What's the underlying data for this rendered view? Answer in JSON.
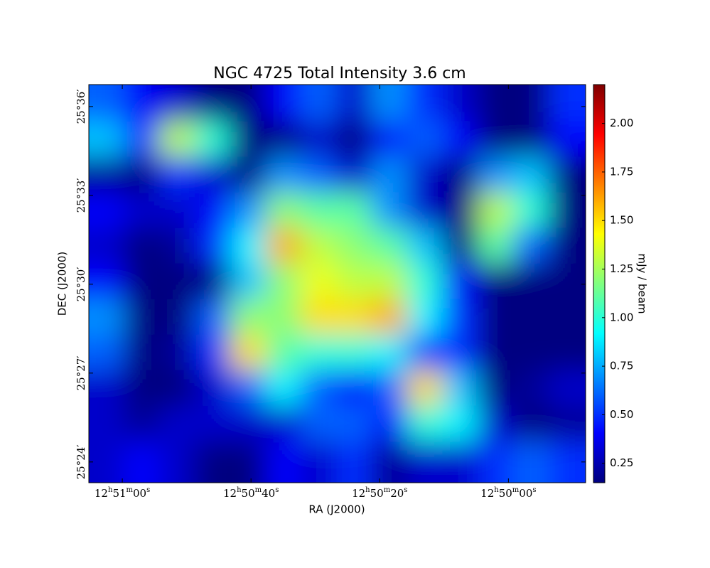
{
  "chart_data": {
    "type": "heatmap",
    "title": "NGC 4725 Total Intensity 3.6 cm",
    "xlabel": "RA (J2000)",
    "ylabel": "DEC (J2000)",
    "colorbar_label": "mJy / beam",
    "xlim": [
      46265.2,
      46188.0
    ],
    "xticks": [
      {
        "value": 46260,
        "label": "12h51m00s"
      },
      {
        "value": 46240,
        "label": "12h50m40s"
      },
      {
        "value": 46220,
        "label": "12h50m20s"
      },
      {
        "value": 46200,
        "label": "12h50m00s"
      }
    ],
    "ylim": [
      1523.3,
      1536.74
    ],
    "yticks": [
      {
        "value": 1524,
        "label": "25°24′"
      },
      {
        "value": 1527,
        "label": "25°27′"
      },
      {
        "value": 1530,
        "label": "25°30′"
      },
      {
        "value": 1533,
        "label": "25°33′"
      },
      {
        "value": 1536,
        "label": "25°36′"
      }
    ],
    "zlim": [
      0.15,
      2.2
    ],
    "zticks": [
      0.25,
      {
        "value": 0.5,
        "label": "0.50"
      },
      0.75,
      {
        "value": 1,
        "label": "1.00"
      },
      1.25,
      {
        "value": 1.5,
        "label": "1.50"
      },
      1.75,
      {
        "value": 2,
        "label": "2.00"
      }
    ],
    "colormap": "jet",
    "x": [
      46262.5,
      46257,
      46251.5,
      46246,
      46240.5,
      46235,
      46229.5,
      46224,
      46218.5,
      46213,
      46207.5,
      46202,
      46196.5,
      46191
    ],
    "y": [
      1536.1,
      1534.9,
      1533.7,
      1532.5,
      1531.3,
      1530.1,
      1528.9,
      1527.7,
      1526.5,
      1525.3,
      1524.1
    ],
    "values": [
      [
        0.6,
        0.4,
        0.3,
        0.15,
        0.15,
        0.4,
        0.6,
        0.3,
        0.7,
        0.5,
        0.3,
        0.15,
        0.15,
        0.5
      ],
      [
        0.8,
        0.5,
        1.3,
        1.0,
        0.15,
        0.15,
        0.3,
        0.15,
        0.4,
        0.6,
        0.4,
        0.15,
        0.15,
        0.4
      ],
      [
        0.2,
        0.15,
        0.5,
        0.3,
        0.15,
        0.7,
        0.6,
        0.3,
        0.7,
        0.3,
        0.15,
        0.7,
        0.8,
        0.15
      ],
      [
        0.4,
        0.3,
        0.3,
        0.4,
        0.7,
        1.2,
        1.1,
        1.1,
        0.7,
        0.3,
        0.15,
        1.3,
        1.0,
        0.15
      ],
      [
        0.3,
        0.15,
        0.2,
        0.5,
        0.9,
        1.6,
        1.3,
        1.2,
        1.1,
        0.8,
        0.15,
        1.1,
        0.6,
        0.15
      ],
      [
        0.4,
        0.15,
        0.15,
        0.15,
        0.8,
        1.2,
        1.4,
        1.3,
        1.3,
        1.0,
        0.4,
        0.15,
        0.15,
        0.15
      ],
      [
        0.7,
        0.15,
        0.15,
        0.6,
        1.2,
        1.2,
        1.5,
        1.5,
        1.6,
        0.9,
        0.5,
        0.15,
        0.15,
        0.15
      ],
      [
        0.6,
        0.15,
        0.2,
        0.5,
        1.5,
        1.1,
        1.0,
        1.0,
        0.9,
        0.5,
        0.5,
        0.15,
        0.15,
        0.15
      ],
      [
        0.3,
        0.15,
        0.15,
        0.3,
        0.6,
        0.9,
        0.6,
        0.4,
        0.6,
        1.5,
        0.8,
        0.15,
        0.2,
        0.3
      ],
      [
        0.3,
        0.2,
        0.3,
        0.3,
        0.3,
        0.3,
        0.6,
        0.6,
        0.4,
        1.0,
        0.9,
        0.3,
        0.15,
        0.2
      ],
      [
        0.3,
        0.4,
        0.3,
        0.15,
        0.15,
        0.4,
        0.3,
        0.5,
        0.2,
        0.3,
        0.3,
        0.5,
        0.6,
        0.5
      ]
    ]
  }
}
